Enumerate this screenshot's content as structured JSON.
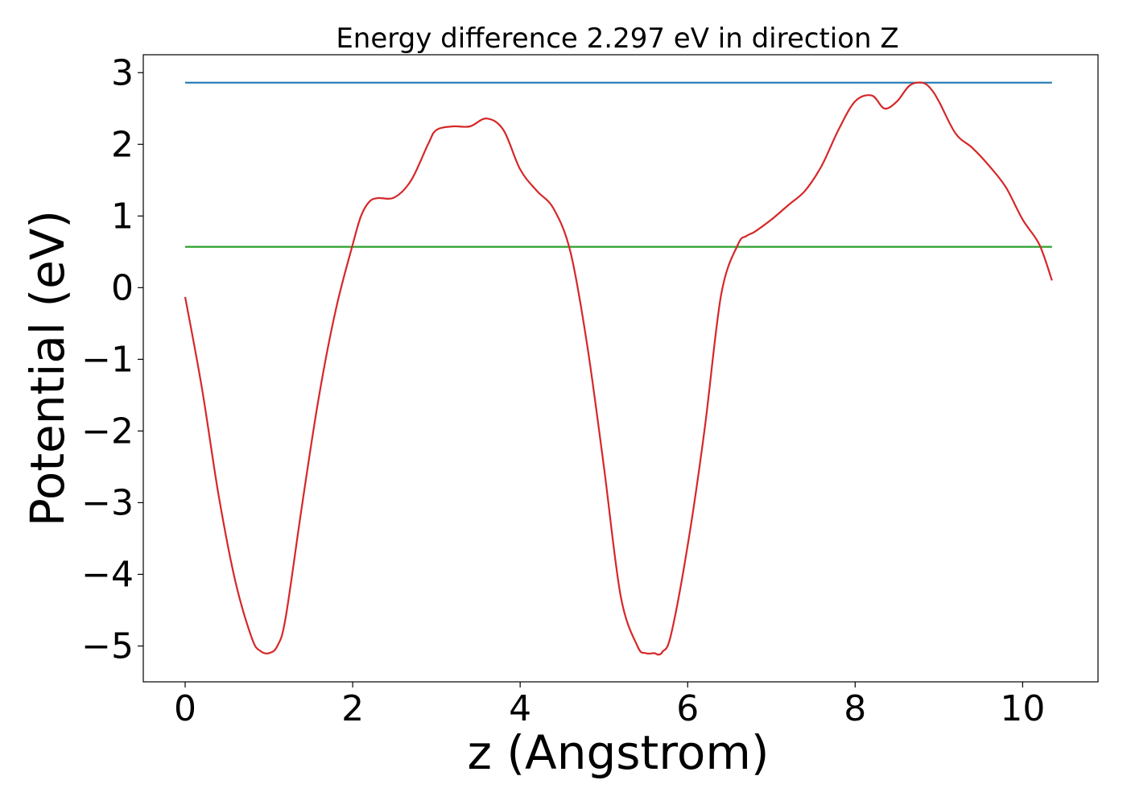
{
  "chart_data": {
    "type": "line",
    "title": "Energy difference 2.297 eV in direction Z",
    "xlabel": "z (Angstrom)",
    "ylabel": "Potential (eV)",
    "xlim": [
      -0.5,
      10.9
    ],
    "ylim": [
      -5.5,
      3.25
    ],
    "xticks": [
      0,
      2,
      4,
      6,
      8,
      10
    ],
    "xtick_labels": [
      "0",
      "2",
      "4",
      "6",
      "8",
      "10"
    ],
    "yticks": [
      -5,
      -4,
      -3,
      -2,
      -1,
      0,
      1,
      2,
      3
    ],
    "ytick_labels": [
      "−5",
      "−4",
      "−3",
      "−2",
      "−1",
      "0",
      "1",
      "2",
      "3"
    ],
    "grid": false,
    "series": [
      {
        "color": "#1f77b4",
        "x": [
          0,
          10.35
        ],
        "y": [
          2.86,
          2.86
        ]
      },
      {
        "color": "#2ca02c",
        "x": [
          0,
          10.35
        ],
        "y": [
          0.57,
          0.57
        ]
      },
      {
        "color": "#d62728",
        "x": [
          0.0,
          0.2,
          0.4,
          0.6,
          0.8,
          0.9,
          1.0,
          1.1,
          1.2,
          1.4,
          1.6,
          1.8,
          2.0,
          2.1,
          2.2,
          2.3,
          2.5,
          2.7,
          2.9,
          3.0,
          3.2,
          3.4,
          3.6,
          3.8,
          4.0,
          4.2,
          4.4,
          4.6,
          4.8,
          5.0,
          5.2,
          5.4,
          5.5,
          5.6,
          5.65,
          5.7,
          5.8,
          6.0,
          6.2,
          6.4,
          6.6,
          6.7,
          6.8,
          7.0,
          7.2,
          7.4,
          7.6,
          7.8,
          8.0,
          8.2,
          8.35,
          8.5,
          8.65,
          8.8,
          8.9,
          9.0,
          9.2,
          9.4,
          9.6,
          9.8,
          10.0,
          10.2,
          10.35
        ],
        "y": [
          -0.13,
          -1.4,
          -2.9,
          -4.1,
          -4.9,
          -5.07,
          -5.1,
          -5.0,
          -4.6,
          -3.0,
          -1.5,
          -0.3,
          0.6,
          1.0,
          1.2,
          1.25,
          1.26,
          1.5,
          2.0,
          2.2,
          2.25,
          2.25,
          2.36,
          2.2,
          1.65,
          1.35,
          1.1,
          0.5,
          -0.8,
          -2.5,
          -4.3,
          -5.0,
          -5.1,
          -5.1,
          -5.12,
          -5.08,
          -4.85,
          -3.6,
          -2.0,
          -0.1,
          0.6,
          0.72,
          0.78,
          0.95,
          1.15,
          1.35,
          1.7,
          2.2,
          2.6,
          2.68,
          2.5,
          2.6,
          2.82,
          2.86,
          2.78,
          2.6,
          2.15,
          1.95,
          1.7,
          1.4,
          0.95,
          0.6,
          0.1
        ]
      }
    ]
  }
}
